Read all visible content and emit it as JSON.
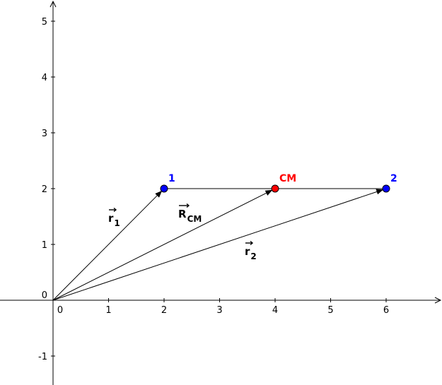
{
  "axes": {
    "x_ticks": [
      "0",
      "1",
      "2",
      "3",
      "4",
      "5",
      "6"
    ],
    "y_ticks": [
      "-1",
      "0",
      "1",
      "2",
      "3",
      "4",
      "5"
    ],
    "xlim": [
      -0.95,
      7.0
    ],
    "ylim": [
      -1.5,
      5.4
    ]
  },
  "points": [
    {
      "label": "1",
      "x": 2,
      "y": 2,
      "color": "#0000ff"
    },
    {
      "label": "CM",
      "x": 4,
      "y": 2,
      "color": "#ff0000"
    },
    {
      "label": "2",
      "x": 6,
      "y": 2,
      "color": "#0000ff"
    }
  ],
  "vectors": [
    {
      "base": "r",
      "sub": "1",
      "to": [
        2,
        2
      ]
    },
    {
      "base": "R",
      "sub": "CM",
      "to": [
        4,
        2
      ]
    },
    {
      "base": "r",
      "sub": "2",
      "to": [
        6,
        2
      ]
    }
  ],
  "segment": {
    "from": [
      2,
      2
    ],
    "to": [
      6,
      2
    ]
  },
  "colors": {
    "axis": "#000000",
    "vector": "#000000"
  }
}
